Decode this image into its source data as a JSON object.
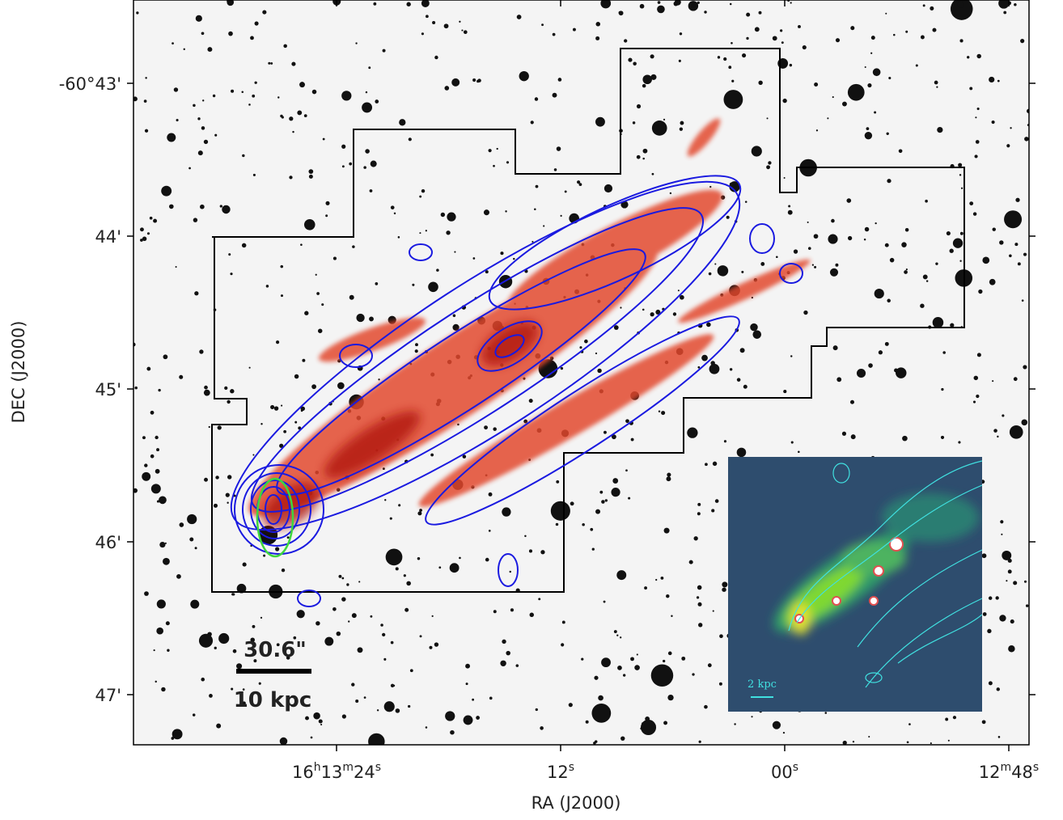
{
  "x_axis": {
    "label": "RA (J2000)",
    "ticks": [
      [
        "16",
        "h",
        "13",
        "m",
        "24",
        "s"
      ],
      [
        "12",
        "s"
      ],
      [
        "00",
        "s"
      ],
      [
        "12",
        "m",
        "48",
        "s"
      ]
    ]
  },
  "y_axis": {
    "label": "DEC (J2000)",
    "ticks": [
      "-60°43'",
      "44'",
      "45'",
      "46'",
      "47'"
    ]
  },
  "scale_bar": {
    "angular": "30.6\"",
    "physical": "10 kpc"
  },
  "inset": {
    "scale": "2 kpc"
  }
}
